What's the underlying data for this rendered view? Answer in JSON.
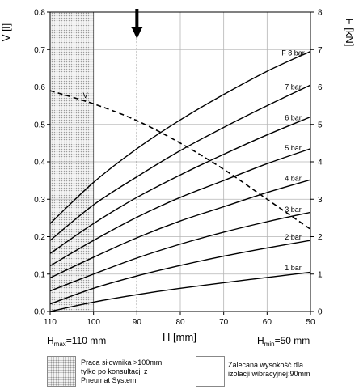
{
  "chart_data": {
    "type": "line",
    "x_axis": {
      "label": "H [mm]",
      "ticks": [
        110,
        100,
        90,
        80,
        70,
        60,
        50
      ],
      "range": [
        110,
        50
      ],
      "reversed": true
    },
    "y_left": {
      "label": "V [l]",
      "ticks": [
        "0.0",
        "0.1",
        "0.2",
        "0.3",
        "0.4",
        "0.5",
        "0.6",
        "0.7",
        "0.8"
      ],
      "range": [
        0,
        0.8
      ]
    },
    "y_right": {
      "label": "F [kN]",
      "ticks": [
        "0",
        "1",
        "2",
        "3",
        "4",
        "5",
        "6",
        "7",
        "8"
      ],
      "range": [
        0,
        8
      ]
    },
    "grid": true,
    "series": [
      {
        "name": "1 bar",
        "axis": "right",
        "x": [
          110,
          100,
          90,
          80,
          70,
          60,
          50
        ],
        "y": [
          0.0,
          0.25,
          0.45,
          0.62,
          0.77,
          0.91,
          1.05
        ]
      },
      {
        "name": "2 bar",
        "axis": "right",
        "x": [
          110,
          100,
          90,
          80,
          70,
          60,
          50
        ],
        "y": [
          0.2,
          0.62,
          0.95,
          1.23,
          1.48,
          1.7,
          1.9
        ]
      },
      {
        "name": "3 bar",
        "axis": "right",
        "x": [
          110,
          100,
          90,
          80,
          70,
          60,
          50
        ],
        "y": [
          0.55,
          1.0,
          1.43,
          1.8,
          2.12,
          2.4,
          2.65
        ]
      },
      {
        "name": "4 bar",
        "axis": "right",
        "x": [
          110,
          100,
          90,
          80,
          70,
          60,
          50
        ],
        "y": [
          0.9,
          1.45,
          1.97,
          2.42,
          2.8,
          3.18,
          3.52
        ]
      },
      {
        "name": "5 bar",
        "axis": "right",
        "x": [
          110,
          100,
          90,
          80,
          70,
          60,
          50
        ],
        "y": [
          1.22,
          1.9,
          2.52,
          3.05,
          3.5,
          3.95,
          4.35
        ]
      },
      {
        "name": "6 bar",
        "axis": "right",
        "x": [
          110,
          100,
          90,
          80,
          70,
          60,
          50
        ],
        "y": [
          1.55,
          2.35,
          3.05,
          3.65,
          4.2,
          4.72,
          5.2
        ]
      },
      {
        "name": "7 bar",
        "axis": "right",
        "x": [
          110,
          100,
          90,
          80,
          70,
          60,
          50
        ],
        "y": [
          1.9,
          2.85,
          3.6,
          4.3,
          4.92,
          5.5,
          6.05
        ]
      },
      {
        "name": "F 8 bar",
        "axis": "right",
        "x": [
          110,
          100,
          90,
          80,
          70,
          60,
          50
        ],
        "y": [
          2.35,
          3.45,
          4.35,
          5.12,
          5.8,
          6.42,
          6.95
        ]
      },
      {
        "name": "V",
        "axis": "left",
        "dashed": true,
        "x": [
          110,
          100,
          90,
          80,
          70,
          60,
          50
        ],
        "y": [
          0.59,
          0.555,
          0.51,
          0.45,
          0.38,
          0.3,
          0.22
        ]
      }
    ],
    "hatched_region": {
      "x_from": 110,
      "x_to": 100
    },
    "marker": {
      "x": 90
    },
    "bottom_labels": {
      "hmax_main": "H",
      "hmax_sub": "max",
      "hmax_rest": "=110 mm",
      "hmin_main": "H",
      "hmin_sub": "min",
      "hmin_rest": "=50 mm"
    }
  },
  "legend": {
    "hatch_text": [
      "Praca siłownika >100mm",
      "tylko po konsultacji z",
      "Pneumat System"
    ],
    "arrow_text": [
      "Zalecana wysokość dla",
      "izolacji wibracyjnej:90mm"
    ]
  }
}
